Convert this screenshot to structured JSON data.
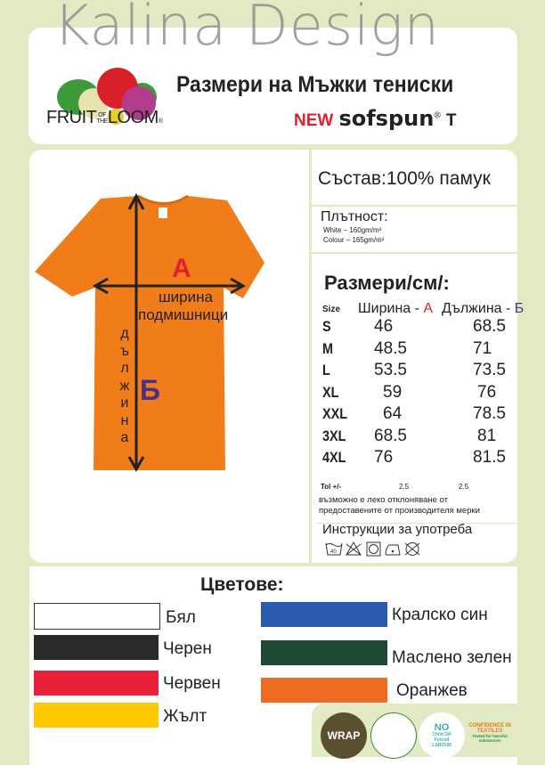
{
  "watermark": "Kalina Design",
  "header": {
    "brand": "FRUIT OF THE LOOM",
    "brand_main": "FRUIT",
    "brand_of": "OF",
    "brand_the": "THE",
    "brand_loom": "LOOM",
    "title": "Размери на Мъжки тениски",
    "new": "NEW",
    "product": "sofspun",
    "product_suffix": "T",
    "reg": "®"
  },
  "diagram": {
    "label_a": "А",
    "label_b": "Б",
    "width_text": "ширина",
    "armpit_text": "подмишници",
    "length_text": [
      "д",
      "ъ",
      "л",
      "ж",
      "и",
      "н",
      "а"
    ],
    "shirt_color": "#f07d1a"
  },
  "composition": "Състав:100% памук",
  "density": {
    "title": "Плътност:",
    "white": "White – 160gm/m²",
    "colour": "Colour – 165gm/m²"
  },
  "sizes": {
    "title": "Размери/см/:",
    "col_size": "Size",
    "col_width": "Ширина - ",
    "col_width_letter": "А",
    "col_length": "Дължина - ",
    "col_length_letter": "Б",
    "rows": [
      [
        "S",
        "46",
        "68.5"
      ],
      [
        "M",
        "48.5",
        "71"
      ],
      [
        "L",
        "53.5",
        "73.5"
      ],
      [
        "XL",
        "59",
        "76"
      ],
      [
        "XXL",
        "64",
        "78.5"
      ],
      [
        "3XL",
        "68.5",
        "81"
      ],
      [
        "4XL",
        "76",
        "81.5"
      ]
    ],
    "tol_label": "Tol +/-",
    "tol_width": "2.5",
    "tol_length": "2.5",
    "note1": "възможно е леко отклоняване от",
    "note2": "предоставените от производителя мерки"
  },
  "care": {
    "title": "Инструкции за употреба",
    "icons": [
      "wash-40-icon",
      "no-bleach-icon",
      "tumble-dry-icon",
      "iron-low-icon",
      "no-dry-clean-icon"
    ],
    "wash_temp": "40"
  },
  "colors": {
    "title": "Цветове:",
    "items": [
      {
        "name": "Бял",
        "hex": "#ffffff"
      },
      {
        "name": "Черен",
        "hex": "#2a2a2a"
      },
      {
        "name": "Червен",
        "hex": "#e8203a"
      },
      {
        "name": "Жълт",
        "hex": "#ffc800"
      },
      {
        "name": "Кралско син",
        "hex": "#2a5aad"
      },
      {
        "name": "Маслено зелен",
        "hex": "#1e4a34"
      },
      {
        "name": "Оранжев",
        "hex": "#ef6a22"
      }
    ]
  },
  "certs": {
    "wrap": "WRAP",
    "no_child": "NO",
    "no_child_sub": "Child OR Forced LABOUR",
    "oeko_title": "CONFIDENCE IN TEXTILES",
    "oeko_sub": "Tested for harmful substances"
  }
}
